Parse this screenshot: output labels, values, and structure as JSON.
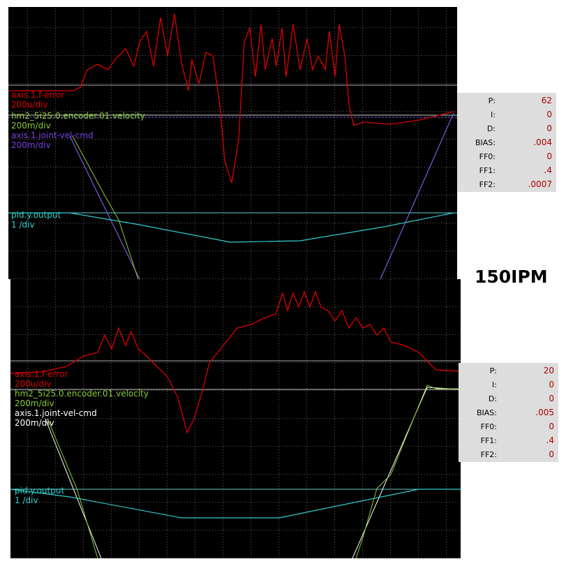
{
  "scopes": [
    {
      "traces": [
        {
          "name": "axis.1.f-error",
          "scale": "200u/div"
        },
        {
          "name": "hm2_5i25.0.encoder.01.velocity",
          "scale": "200m/div"
        },
        {
          "name": "axis.1.joint-vel-cmd",
          "scale": "200m/div"
        },
        {
          "name": "pid.y.output",
          "scale": "1 /div"
        }
      ],
      "params": [
        [
          "P:",
          "62"
        ],
        [
          "I:",
          "0"
        ],
        [
          "D:",
          "0"
        ],
        [
          "BIAS:",
          ".004"
        ],
        [
          "FF0:",
          "0"
        ],
        [
          "FF1:",
          ".4"
        ],
        [
          "FF2:",
          ".0007"
        ]
      ]
    },
    {
      "traces": [
        {
          "name": "axis.1.f-error",
          "scale": "200u/div"
        },
        {
          "name": "hm2_5i25.0.encoder.01.velocity",
          "scale": "200m/div"
        },
        {
          "name": "axis.1.joint-vel-cmd",
          "scale": "200m/div"
        },
        {
          "name": "pid.y.output",
          "scale": "1 /div"
        }
      ],
      "params": [
        [
          "P:",
          "20"
        ],
        [
          "I:",
          "0"
        ],
        [
          "D:",
          "0"
        ],
        [
          "BIAS:",
          ".005"
        ],
        [
          "FF0:",
          "0"
        ],
        [
          "FF1:",
          ".4"
        ],
        [
          "FF2:",
          "0"
        ]
      ]
    }
  ],
  "label": "150IPM"
}
